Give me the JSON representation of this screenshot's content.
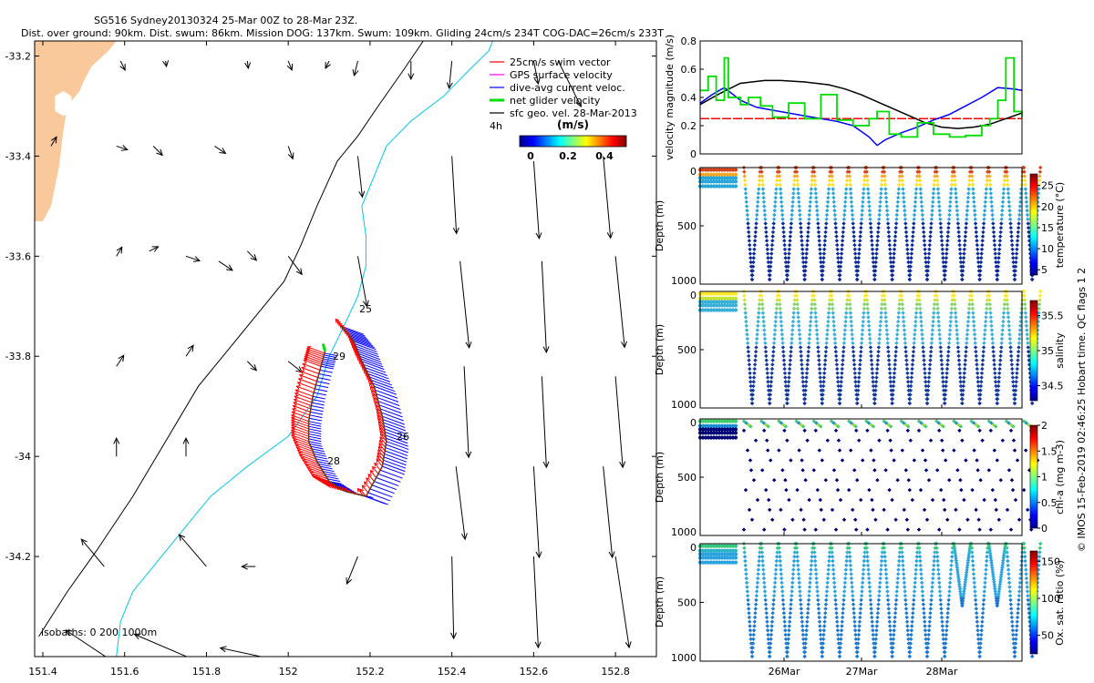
{
  "title": {
    "line1": "SG516 Sydney20130324 25-Mar 00Z to 28-Mar 23Z.",
    "line2": "Dist. over ground: 90km. Dist. swum: 86km. Mission DOG: 137km. Swum: 109km. Gliding 24cm/s 234T COG-DAC=26cm/s 233T"
  },
  "footer_credit": "© IMOS 15-Feb-2019 02:46:25 Hobart time. QC flags 1  2",
  "colors": {
    "land": "#f9c89b",
    "coast_line": "#000000",
    "isobath_200": "#00c8e6",
    "swim_vector": "#ff0000",
    "gps_velocity": "#ff00ff",
    "dive_avg_current": "#0000ff",
    "net_velocity": "#00dd00",
    "sfc_geo_vel": "#000000",
    "brown_track": "#6b3a14"
  },
  "chart_data": [
    {
      "type": "scatter",
      "name": "map",
      "xlim": [
        151.38,
        152.9
      ],
      "ylim": [
        -34.4,
        -33.17
      ],
      "xticks": [
        151.4,
        151.6,
        151.8,
        152,
        152.2,
        152.4,
        152.6,
        152.8
      ],
      "xtick_labels": [
        "151.4",
        "151.6",
        "151.8",
        "152",
        "152.2",
        "152.4",
        "152.6",
        "152.8"
      ],
      "yticks": [
        -33.2,
        -33.4,
        -33.6,
        -33.8,
        -34,
        -34.2
      ],
      "ytick_labels": [
        "-33.2",
        "-33.4",
        "-33.6",
        "-33.8",
        "-34",
        "-34.2"
      ],
      "legend": {
        "entries": [
          {
            "label": "25cm/s swim vector",
            "color_key": "swim_vector"
          },
          {
            "label": "GPS surface velocity",
            "color_key": "gps_velocity"
          },
          {
            "label": "dive-avg current veloc.",
            "color_key": "dive_avg_current"
          },
          {
            "label": "net glider velocity",
            "color_key": "net_velocity"
          },
          {
            "label": "sfc geo. vel. 28-Mar-2013",
            "color_key": "sfc_geo_vel"
          }
        ],
        "scale_label": "4h",
        "colorbar_title": "(m/s)",
        "colorbar_ticks": [
          "0",
          "0.2",
          "0.4"
        ],
        "placement": "top-right"
      },
      "isobath_label": "isobaths: 0    200  1000m",
      "day_labels": [
        {
          "text": "25",
          "lon": 152.17,
          "lat": -33.733
        },
        {
          "text": "29",
          "lon": 152.1,
          "lat": -33.79
        },
        {
          "text": "26",
          "lon": 152.25,
          "lat": -33.96
        },
        {
          "text": "28",
          "lon": 152.09,
          "lat": -34.005
        }
      ],
      "land": [
        [
          151.38,
          -33.17
        ],
        [
          151.58,
          -33.17
        ],
        [
          151.56,
          -33.19
        ],
        [
          151.52,
          -33.22
        ],
        [
          151.5,
          -33.25
        ],
        [
          151.49,
          -33.27
        ],
        [
          151.46,
          -33.3
        ],
        [
          151.45,
          -33.35
        ],
        [
          151.44,
          -33.42
        ],
        [
          151.42,
          -33.5
        ],
        [
          151.4,
          -33.53
        ],
        [
          151.38,
          -33.53
        ]
      ],
      "land_lake": [
        [
          151.45,
          -33.27
        ],
        [
          151.47,
          -33.28
        ],
        [
          151.47,
          -33.31
        ],
        [
          151.45,
          -33.32
        ],
        [
          151.43,
          -33.31
        ],
        [
          151.43,
          -33.28
        ]
      ],
      "coast_1000m": [
        [
          151.39,
          -34.36
        ],
        [
          151.46,
          -34.27
        ],
        [
          151.53,
          -34.19
        ],
        [
          151.62,
          -34.08
        ],
        [
          151.7,
          -33.97
        ],
        [
          151.78,
          -33.86
        ],
        [
          151.86,
          -33.78
        ],
        [
          151.93,
          -33.71
        ],
        [
          151.99,
          -33.65
        ],
        [
          152.03,
          -33.58
        ],
        [
          152.07,
          -33.5
        ],
        [
          152.12,
          -33.41
        ],
        [
          152.17,
          -33.36
        ],
        [
          152.22,
          -33.3
        ],
        [
          152.28,
          -33.23
        ],
        [
          152.33,
          -33.17
        ]
      ],
      "isobath_200m": [
        [
          151.58,
          -34.4
        ],
        [
          151.59,
          -34.33
        ],
        [
          151.62,
          -34.27
        ],
        [
          151.68,
          -34.21
        ],
        [
          151.74,
          -34.15
        ],
        [
          151.81,
          -34.08
        ],
        [
          151.9,
          -34.02
        ],
        [
          152.0,
          -33.96
        ],
        [
          152.07,
          -33.88
        ],
        [
          152.1,
          -33.8
        ],
        [
          152.13,
          -33.75
        ],
        [
          152.17,
          -33.68
        ],
        [
          152.19,
          -33.62
        ],
        [
          152.19,
          -33.56
        ],
        [
          152.18,
          -33.5
        ],
        [
          152.21,
          -33.44
        ],
        [
          152.24,
          -33.38
        ],
        [
          152.3,
          -33.33
        ],
        [
          152.38,
          -33.28
        ],
        [
          152.44,
          -33.23
        ],
        [
          152.49,
          -33.19
        ],
        [
          152.5,
          -33.17
        ]
      ],
      "surface_vectors": [
        {
          "lon": 151.59,
          "lat": -33.21,
          "u": 0.005,
          "v": -0.01
        },
        {
          "lon": 151.7,
          "lat": -33.21,
          "u": 0.001,
          "v": -0.006
        },
        {
          "lon": 151.9,
          "lat": -33.21,
          "u": 0.001,
          "v": -0.008
        },
        {
          "lon": 152.0,
          "lat": -33.21,
          "u": 0.004,
          "v": -0.01
        },
        {
          "lon": 152.1,
          "lat": -33.21,
          "u": -0.004,
          "v": -0.008
        },
        {
          "lon": 152.17,
          "lat": -33.21,
          "u": -0.004,
          "v": -0.016
        },
        {
          "lon": 152.3,
          "lat": -33.21,
          "u": 0.0,
          "v": -0.02
        },
        {
          "lon": 152.4,
          "lat": -33.21,
          "u": -0.003,
          "v": -0.03
        },
        {
          "lon": 152.6,
          "lat": -33.21,
          "u": 0.005,
          "v": -0.025
        },
        {
          "lon": 152.66,
          "lat": -33.21,
          "u": 0.025,
          "v": -0.05
        },
        {
          "lon": 151.42,
          "lat": -33.38,
          "u": 0.006,
          "v": 0.01
        },
        {
          "lon": 151.58,
          "lat": -33.38,
          "u": 0.012,
          "v": -0.004
        },
        {
          "lon": 151.67,
          "lat": -33.38,
          "u": 0.01,
          "v": -0.01
        },
        {
          "lon": 151.82,
          "lat": -33.38,
          "u": 0.012,
          "v": -0.008
        },
        {
          "lon": 152.0,
          "lat": -33.38,
          "u": 0.005,
          "v": -0.014
        },
        {
          "lon": 152.17,
          "lat": -33.4,
          "u": 0.005,
          "v": -0.045
        },
        {
          "lon": 152.4,
          "lat": -33.4,
          "u": 0.005,
          "v": -0.085
        },
        {
          "lon": 152.6,
          "lat": -33.41,
          "u": 0.006,
          "v": -0.085
        },
        {
          "lon": 152.77,
          "lat": -33.4,
          "u": 0.008,
          "v": -0.09
        },
        {
          "lon": 151.58,
          "lat": -33.6,
          "u": 0.006,
          "v": 0.01
        },
        {
          "lon": 151.66,
          "lat": -33.59,
          "u": 0.01,
          "v": 0.005
        },
        {
          "lon": 151.75,
          "lat": -33.6,
          "u": 0.015,
          "v": -0.005
        },
        {
          "lon": 151.83,
          "lat": -33.61,
          "u": 0.015,
          "v": -0.01
        },
        {
          "lon": 151.9,
          "lat": -33.59,
          "u": 0.01,
          "v": -0.01
        },
        {
          "lon": 152.0,
          "lat": -33.6,
          "u": 0.015,
          "v": -0.02
        },
        {
          "lon": 152.17,
          "lat": -33.6,
          "u": 0.01,
          "v": -0.055
        },
        {
          "lon": 152.42,
          "lat": -33.61,
          "u": 0.01,
          "v": -0.095
        },
        {
          "lon": 152.62,
          "lat": -33.61,
          "u": 0.005,
          "v": -0.1
        },
        {
          "lon": 152.8,
          "lat": -33.6,
          "u": 0.01,
          "v": -0.1
        },
        {
          "lon": 151.58,
          "lat": -33.82,
          "u": 0.008,
          "v": 0.012
        },
        {
          "lon": 151.75,
          "lat": -33.8,
          "u": 0.008,
          "v": 0.012
        },
        {
          "lon": 151.9,
          "lat": -33.81,
          "u": 0.01,
          "v": -0.01
        },
        {
          "lon": 152.0,
          "lat": -33.81,
          "u": 0.015,
          "v": -0.012
        },
        {
          "lon": 152.43,
          "lat": -33.82,
          "u": 0.005,
          "v": -0.1
        },
        {
          "lon": 152.62,
          "lat": -33.84,
          "u": 0.005,
          "v": -0.1
        },
        {
          "lon": 152.8,
          "lat": -33.84,
          "u": 0.008,
          "v": -0.1
        },
        {
          "lon": 151.58,
          "lat": -34.0,
          "u": 0.0,
          "v": 0.02
        },
        {
          "lon": 151.75,
          "lat": -34.0,
          "u": 0.0,
          "v": 0.02
        },
        {
          "lon": 152.41,
          "lat": -34.02,
          "u": 0.01,
          "v": -0.08
        },
        {
          "lon": 152.6,
          "lat": -34.02,
          "u": 0.006,
          "v": -0.1
        },
        {
          "lon": 152.77,
          "lat": -34.02,
          "u": 0.01,
          "v": -0.1
        },
        {
          "lon": 151.55,
          "lat": -34.22,
          "u": -0.025,
          "v": 0.03
        },
        {
          "lon": 151.8,
          "lat": -34.22,
          "u": -0.03,
          "v": 0.035
        },
        {
          "lon": 151.92,
          "lat": -34.22,
          "u": -0.015,
          "v": 0.0
        },
        {
          "lon": 152.17,
          "lat": -34.2,
          "u": -0.012,
          "v": -0.03
        },
        {
          "lon": 152.4,
          "lat": -34.2,
          "u": 0.002,
          "v": -0.09
        },
        {
          "lon": 152.6,
          "lat": -34.2,
          "u": 0.005,
          "v": -0.1
        },
        {
          "lon": 152.8,
          "lat": -34.2,
          "u": 0.015,
          "v": -0.1
        },
        {
          "lon": 151.59,
          "lat": -34.42,
          "u": -0.06,
          "v": 0.04
        },
        {
          "lon": 151.78,
          "lat": -34.41,
          "u": -0.07,
          "v": 0.03
        },
        {
          "lon": 151.99,
          "lat": -34.41,
          "u": -0.07,
          "v": 0.015
        }
      ],
      "glider_track": [
        {
          "lon": 152.13,
          "lat": -33.74
        },
        {
          "lon": 152.16,
          "lat": -33.77
        },
        {
          "lon": 152.18,
          "lat": -33.81
        },
        {
          "lon": 152.21,
          "lat": -33.86
        },
        {
          "lon": 152.23,
          "lat": -33.92
        },
        {
          "lon": 152.24,
          "lat": -33.97
        },
        {
          "lon": 152.23,
          "lat": -34.02
        },
        {
          "lon": 152.19,
          "lat": -34.08
        },
        {
          "lon": 152.14,
          "lat": -34.07
        },
        {
          "lon": 152.1,
          "lat": -34.05
        },
        {
          "lon": 152.07,
          "lat": -34.01
        },
        {
          "lon": 152.05,
          "lat": -33.97
        },
        {
          "lon": 152.05,
          "lat": -33.93
        },
        {
          "lon": 152.06,
          "lat": -33.88
        },
        {
          "lon": 152.08,
          "lat": -33.82
        },
        {
          "lon": 152.09,
          "lat": -33.79
        }
      ],
      "day_tags": [
        "25",
        "26",
        "28",
        "29"
      ]
    },
    {
      "type": "line",
      "name": "velocity magnitude",
      "ylabel": "velocity magnitude (m/s)",
      "ylim": [
        0,
        0.8
      ],
      "yticks": [
        0,
        0.2,
        0.4,
        0.6,
        0.8
      ],
      "ytick_labels": [
        "0",
        "0.2",
        "0.4",
        "0.6",
        "0.8"
      ],
      "xlim": [
        0,
        4
      ],
      "series": [
        {
          "color_key": "swim_vector",
          "x": [
            0,
            4
          ],
          "y": [
            0.25,
            0.25
          ]
        },
        {
          "color_key": "sfc_geo_vel",
          "x": [
            0,
            0.25,
            0.5,
            0.8,
            1.0,
            1.3,
            1.6,
            1.8,
            2.0,
            2.2,
            2.4,
            2.6,
            2.8,
            3.0,
            3.2,
            3.4,
            3.6,
            3.8,
            4.0
          ],
          "y": [
            0.35,
            0.43,
            0.5,
            0.52,
            0.52,
            0.51,
            0.49,
            0.46,
            0.42,
            0.37,
            0.32,
            0.27,
            0.22,
            0.19,
            0.18,
            0.19,
            0.21,
            0.25,
            0.29
          ]
        },
        {
          "color_key": "dive_avg_current",
          "x": [
            0,
            0.15,
            0.3,
            0.5,
            0.7,
            0.9,
            1.1,
            1.3,
            1.5,
            1.7,
            1.9,
            2.1,
            2.2,
            2.3,
            2.5,
            2.7,
            2.9,
            3.1,
            3.3,
            3.5,
            3.7,
            3.9,
            4.0
          ],
          "y": [
            0.36,
            0.42,
            0.47,
            0.38,
            0.33,
            0.31,
            0.29,
            0.27,
            0.25,
            0.23,
            0.2,
            0.12,
            0.06,
            0.1,
            0.15,
            0.19,
            0.24,
            0.28,
            0.34,
            0.4,
            0.47,
            0.46,
            0.45
          ]
        },
        {
          "color_key": "net_velocity",
          "x": [
            0,
            0.1,
            0.2,
            0.3,
            0.35,
            0.5,
            0.6,
            0.75,
            0.9,
            1.1,
            1.3,
            1.5,
            1.7,
            1.9,
            2.1,
            2.2,
            2.35,
            2.5,
            2.7,
            2.9,
            3.1,
            3.3,
            3.5,
            3.6,
            3.7,
            3.8,
            3.9,
            4.0
          ],
          "y": [
            0.45,
            0.55,
            0.38,
            0.68,
            0.4,
            0.35,
            0.4,
            0.34,
            0.26,
            0.36,
            0.25,
            0.42,
            0.24,
            0.2,
            0.25,
            0.3,
            0.14,
            0.12,
            0.22,
            0.14,
            0.12,
            0.13,
            0.2,
            0.25,
            0.38,
            0.68,
            0.3,
            0.26
          ]
        }
      ]
    },
    {
      "type": "scatter",
      "name": "temperature",
      "ylabel": "Depth (m)",
      "yticks": [
        0,
        500,
        1000
      ],
      "ytick_labels": [
        "0",
        "500",
        "1000"
      ],
      "colorbar_label": "temperature (°C)",
      "colorbar_ticks": [
        "5",
        "10",
        "15",
        "20",
        "25"
      ]
    },
    {
      "type": "scatter",
      "name": "salinity",
      "ylabel": "Depth (m)",
      "yticks": [
        0,
        500,
        1000
      ],
      "ytick_labels": [
        "0",
        "500",
        "1000"
      ],
      "colorbar_label": "salinity",
      "colorbar_ticks": [
        "34.5",
        "35",
        "35.5"
      ]
    },
    {
      "type": "scatter",
      "name": "chl-a",
      "ylabel": "Depth (m)",
      "yticks": [
        0,
        500,
        1000
      ],
      "ytick_labels": [
        "0",
        "500",
        "1000"
      ],
      "colorbar_label": "chl-a (mg m-3)",
      "colorbar_ticks": [
        "0",
        "0.5",
        "1",
        "1.5",
        "2"
      ]
    },
    {
      "type": "scatter",
      "name": "oxygen",
      "ylabel": "Depth (m)",
      "yticks": [
        0,
        500,
        1000
      ],
      "ytick_labels": [
        "0",
        "500",
        "1000"
      ],
      "colorbar_label": "Ox. sat. ratio (%)",
      "colorbar_ticks": [
        "50",
        "100",
        "150"
      ],
      "xtick_labels": [
        "26Mar",
        "27Mar",
        "28Mar"
      ]
    }
  ]
}
